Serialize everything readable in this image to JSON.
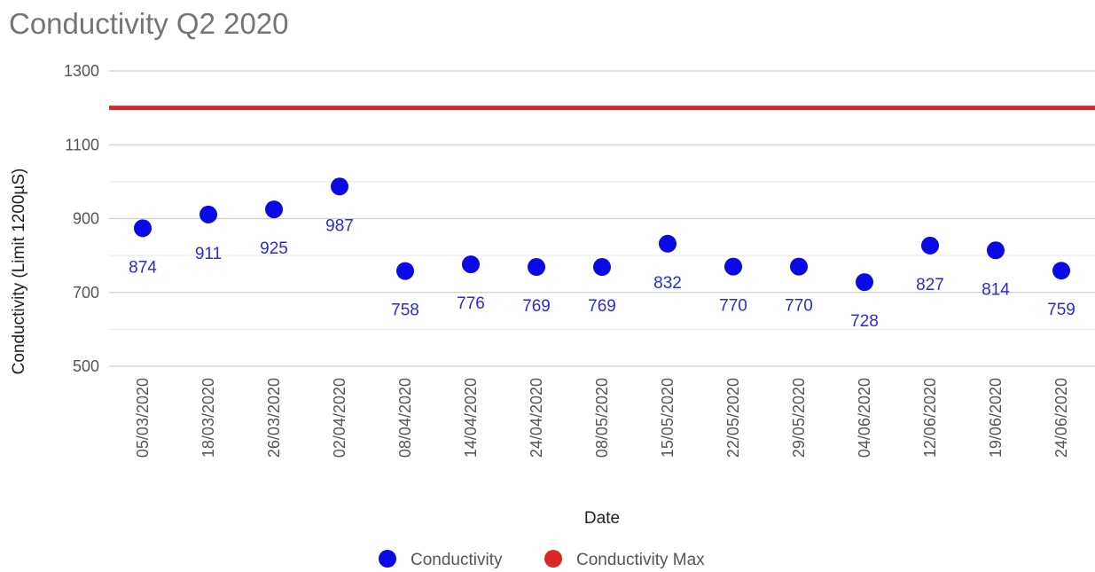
{
  "chart_data": {
    "type": "scatter",
    "title": "Conductivity Q2 2020",
    "xlabel": "Date",
    "ylabel": "Conductivity (Limit 1200µS)",
    "ylim": [
      500,
      1300
    ],
    "yticks": [
      "500",
      "700",
      "900",
      "1100",
      "1300"
    ],
    "grid": true,
    "legend_position": "bottom",
    "categories": [
      "05/03/2020",
      "18/03/2020",
      "26/03/2020",
      "02/04/2020",
      "08/04/2020",
      "14/04/2020",
      "24/04/2020",
      "08/05/2020",
      "15/05/2020",
      "22/05/2020",
      "29/05/2020",
      "04/06/2020",
      "12/06/2020",
      "19/06/2020",
      "24/06/2020"
    ],
    "series": [
      {
        "name": "Conductivity",
        "color": "#0a0ae6",
        "values": [
          874,
          911,
          925,
          987,
          758,
          776,
          769,
          769,
          832,
          770,
          770,
          728,
          827,
          814,
          759
        ]
      },
      {
        "name": "Conductivity Max",
        "color": "#dc2626",
        "value": 1200
      }
    ]
  }
}
